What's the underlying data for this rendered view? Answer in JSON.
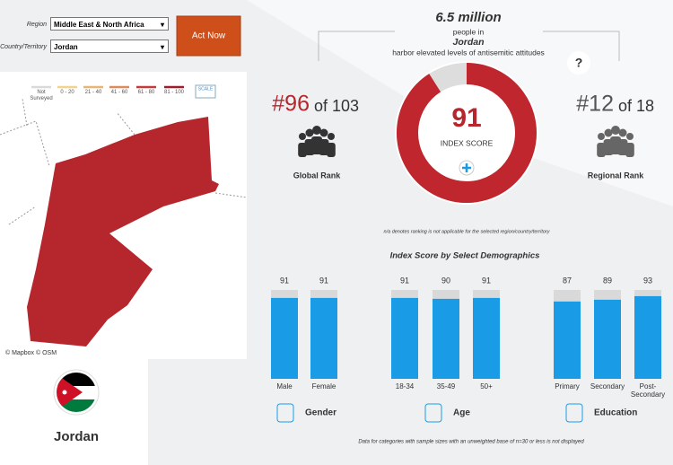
{
  "filters": {
    "region_label": "Region",
    "region": "Middle East & North Africa",
    "country_label": "Country/Territory",
    "country": "Jordan",
    "button": "Act Now"
  },
  "legend": {
    "items": [
      "Not Surveyed",
      "0 - 20",
      "21 - 40",
      "41 - 60",
      "61 - 80",
      "81 - 100"
    ],
    "colors": [
      "#d9d9d9",
      "#f2d38c",
      "#e9b574",
      "#dc8b5c",
      "#c33b3b",
      "#9c1e2b"
    ],
    "scale_label": "SCALE"
  },
  "map": {
    "attribution": [
      "© Mapbox",
      "© OSM"
    ],
    "country_name": "Jordan",
    "fill": "#b5272d"
  },
  "headline": {
    "population": "6.5 million",
    "line1": "people in",
    "country": "Jordan",
    "line2": "harbor elevated levels of antisemitic attitudes",
    "help": "?"
  },
  "global_rank": {
    "rank": "#96",
    "of": "of 103",
    "label": "Global Rank"
  },
  "regional_rank": {
    "rank": "#12",
    "of": "of 18",
    "label": "Regional Rank"
  },
  "index": {
    "value": 91,
    "range": [
      0,
      100
    ],
    "label": "INDEX SCORE",
    "color": "#c0262d"
  },
  "note": "n/a denotes ranking is not applicable for the selected region/country/territory",
  "demographics": {
    "title": "Index Score by Select Demographics",
    "range": [
      0,
      100
    ],
    "color": "#1a9be6",
    "groups": [
      {
        "name": "Gender",
        "categories": [
          "Male",
          "Female"
        ],
        "values": [
          91,
          91
        ]
      },
      {
        "name": "Age",
        "categories": [
          "18-34",
          "35-49",
          "50+"
        ],
        "values": [
          91,
          90,
          91
        ]
      },
      {
        "name": "Education",
        "categories": [
          "Primary",
          "Secondary",
          "Post-Secondary"
        ],
        "values": [
          87,
          89,
          93
        ]
      }
    ]
  },
  "footer": "Data for categories with sample sizes with an unweighted base of n=30 or less is not displayed"
}
